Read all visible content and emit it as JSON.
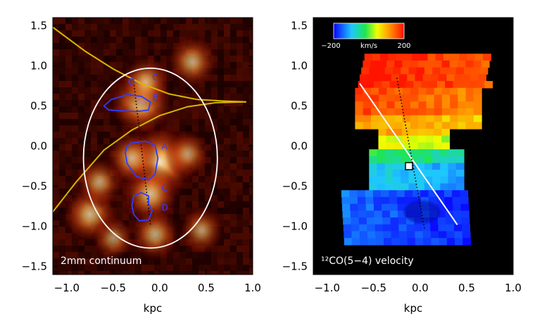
{
  "chart_data": [
    {
      "type": "heatmap",
      "panel": "left",
      "label": "2mm continuum",
      "xlabel": "kpc",
      "ylabel": "",
      "xlim": [
        -1.15,
        1.0
      ],
      "ylim": [
        -1.6,
        1.6
      ],
      "xticks": [
        -1.0,
        -0.5,
        0.0,
        0.5,
        1.0
      ],
      "yticks": [
        -1.5,
        -1.0,
        -0.5,
        0.0,
        0.5,
        1.0,
        1.5
      ],
      "xtick_labels": [
        "−1.0",
        "−0.5",
        "0.0",
        "0.5",
        "1.0"
      ],
      "ytick_labels": [
        "−1.5",
        "−1.0",
        "−0.5",
        "0.0",
        "0.5",
        "1.0",
        "1.5"
      ],
      "colormap": "red-temperature",
      "background_color": "#1a0000",
      "emission_clumps": [
        {
          "x": 0.0,
          "y": -0.2,
          "intensity": 1.0
        },
        {
          "x": -0.2,
          "y": 0.55,
          "intensity": 0.85
        },
        {
          "x": -0.15,
          "y": 0.8,
          "intensity": 0.55
        },
        {
          "x": -0.1,
          "y": -0.6,
          "intensity": 0.7
        },
        {
          "x": -0.3,
          "y": -0.15,
          "intensity": 0.6
        },
        {
          "x": -0.75,
          "y": -0.85,
          "intensity": 0.65
        },
        {
          "x": -0.65,
          "y": -0.45,
          "intensity": 0.5
        },
        {
          "x": 0.35,
          "y": 1.05,
          "intensity": 0.55
        },
        {
          "x": 0.3,
          "y": -0.1,
          "intensity": 0.45
        },
        {
          "x": 0.45,
          "y": -1.05,
          "intensity": 0.45
        },
        {
          "x": -0.5,
          "y": -1.15,
          "intensity": 0.4
        },
        {
          "x": -0.05,
          "y": -1.1,
          "intensity": 0.55
        }
      ],
      "ellipse": {
        "cx": -0.1,
        "cy": -0.15,
        "rx": 0.72,
        "ry": 1.12,
        "color": "#ffffff"
      },
      "curves": [
        {
          "name": "upper-arc",
          "color": "#d4b800",
          "points": [
            [
              -1.15,
              1.48
            ],
            [
              -0.8,
              1.18
            ],
            [
              -0.5,
              0.96
            ],
            [
              -0.2,
              0.78
            ],
            [
              0.1,
              0.65
            ],
            [
              0.4,
              0.58
            ],
            [
              0.7,
              0.56
            ],
            [
              0.93,
              0.55
            ]
          ]
        },
        {
          "name": "lower-arc",
          "color": "#d4b800",
          "points": [
            [
              -1.15,
              -0.82
            ],
            [
              -0.9,
              -0.45
            ],
            [
              -0.6,
              -0.05
            ],
            [
              -0.3,
              0.2
            ],
            [
              0.0,
              0.38
            ],
            [
              0.3,
              0.49
            ],
            [
              0.6,
              0.54
            ],
            [
              0.93,
              0.55
            ]
          ]
        }
      ],
      "dotted_axis": {
        "from": [
          -0.28,
          0.8
        ],
        "to": [
          -0.1,
          -0.98
        ],
        "color": "#000000"
      },
      "contours": [
        {
          "name": "B",
          "color": "#2f3cff",
          "points": [
            [
              -0.6,
              0.5
            ],
            [
              -0.52,
              0.58
            ],
            [
              -0.35,
              0.64
            ],
            [
              -0.2,
              0.62
            ],
            [
              -0.1,
              0.55
            ],
            [
              -0.12,
              0.45
            ],
            [
              -0.25,
              0.43
            ],
            [
              -0.42,
              0.44
            ],
            [
              -0.55,
              0.45
            ]
          ]
        },
        {
          "name": "A",
          "color": "#2f3cff",
          "points": [
            [
              -0.35,
              0.0
            ],
            [
              -0.3,
              0.04
            ],
            [
              -0.15,
              0.06
            ],
            [
              -0.05,
              0.01
            ],
            [
              -0.02,
              -0.15
            ],
            [
              -0.05,
              -0.35
            ],
            [
              -0.12,
              -0.42
            ],
            [
              -0.25,
              -0.38
            ],
            [
              -0.35,
              -0.22
            ],
            [
              -0.37,
              -0.08
            ]
          ]
        },
        {
          "name": "D",
          "color": "#2f3cff",
          "points": [
            [
              -0.28,
              -0.62
            ],
            [
              -0.2,
              -0.58
            ],
            [
              -0.12,
              -0.62
            ],
            [
              -0.12,
              -0.72
            ],
            [
              -0.08,
              -0.8
            ],
            [
              -0.12,
              -0.92
            ],
            [
              -0.22,
              -0.93
            ],
            [
              -0.28,
              -0.85
            ],
            [
              -0.3,
              -0.74
            ]
          ]
        },
        {
          "name": "C",
          "color": "#2f3cff",
          "points": [
            [
              -0.33,
              0.81
            ],
            [
              -0.31,
              0.84
            ],
            [
              -0.28,
              0.83
            ],
            [
              -0.28,
              0.78
            ],
            [
              -0.31,
              0.77
            ],
            [
              -0.33,
              0.79
            ]
          ]
        }
      ],
      "clump_labels": [
        {
          "text": "C",
          "x": -0.08,
          "y": 0.82
        },
        {
          "text": "B",
          "x": -0.08,
          "y": 0.57
        },
        {
          "text": "A",
          "x": 0.02,
          "y": -0.04
        },
        {
          "text": "C",
          "x": 0.02,
          "y": -0.56
        },
        {
          "text": "D",
          "x": 0.02,
          "y": -0.8
        }
      ]
    },
    {
      "type": "heatmap",
      "panel": "right",
      "label": "¹²CO(5−4) velocity",
      "xlabel": "kpc",
      "ylabel": "",
      "xlim": [
        -1.15,
        1.0
      ],
      "ylim": [
        -1.6,
        1.6
      ],
      "xticks": [
        -1.0,
        -0.5,
        0.0,
        0.5,
        1.0
      ],
      "yticks": [
        -1.5,
        -1.0,
        -0.5,
        0.0,
        0.5,
        1.0,
        1.5
      ],
      "xtick_labels": [
        "−1.0",
        "−0.5",
        "0.0",
        "0.5",
        "1.0"
      ],
      "ytick_labels": [
        "−1.5",
        "−1.0",
        "−0.5",
        "0.0",
        "0.5",
        "1.0",
        "1.5"
      ],
      "background_color": "#000000",
      "colorbar": {
        "min": -200,
        "max": 200,
        "unit": "km/s",
        "min_label": "−200",
        "max_label": "200"
      },
      "velocity_bands": [
        {
          "y_top": 1.15,
          "y_bottom": 0.75,
          "velocity": 180
        },
        {
          "y_top": 0.75,
          "y_bottom": 0.45,
          "velocity": 150
        },
        {
          "y_top": 0.45,
          "y_bottom": 0.15,
          "velocity": 100
        },
        {
          "y_top": 0.15,
          "y_bottom": 0.0,
          "velocity": 40
        },
        {
          "y_top": 0.0,
          "y_bottom": -0.18,
          "velocity": -40
        },
        {
          "y_top": -0.18,
          "y_bottom": -0.55,
          "velocity": -110
        },
        {
          "y_top": -0.55,
          "y_bottom": -1.1,
          "velocity": -175
        }
      ],
      "kinematic_axis": {
        "from": [
          -0.65,
          0.78
        ],
        "to": [
          0.4,
          -0.98
        ],
        "color": "#ffffff"
      },
      "dotted_axis": {
        "from": [
          -0.25,
          0.85
        ],
        "to": [
          0.05,
          -1.05
        ],
        "color": "#000000"
      },
      "center_marker": {
        "x": -0.12,
        "y": -0.25,
        "shape": "square",
        "color": "#ffffff"
      }
    }
  ]
}
